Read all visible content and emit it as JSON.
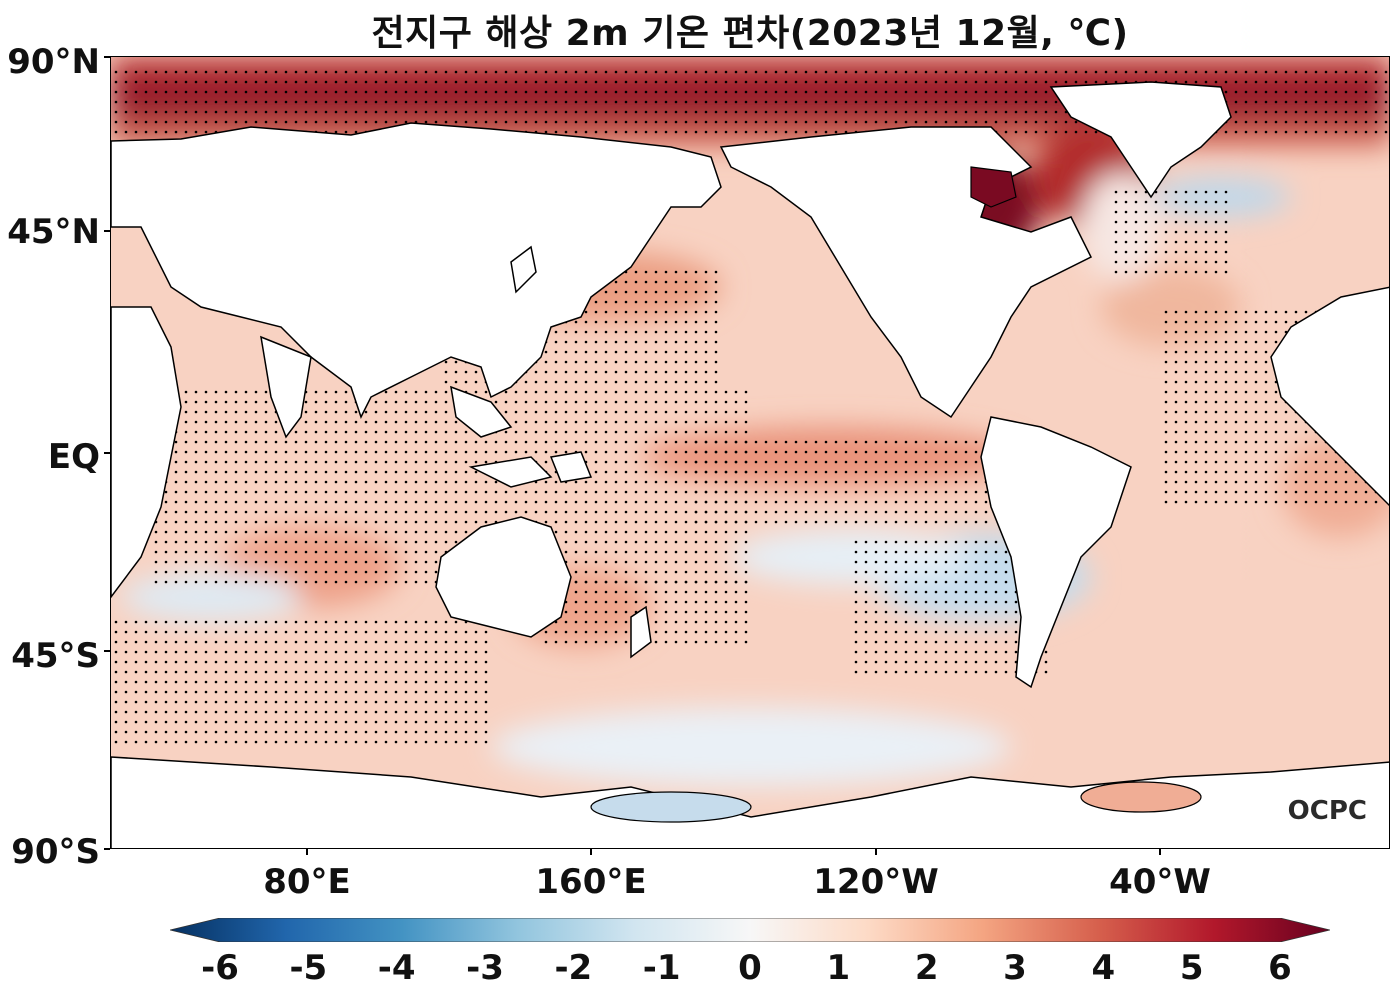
{
  "title": "전지구 해상 2m 기온 편차(2023년 12월, ℃)",
  "map": {
    "projection": "equirectangular, centered on Pacific",
    "lat_labels": [
      "90°N",
      "45°N",
      "EQ",
      "45°S",
      "90°S"
    ],
    "lon_labels": [
      "80°E",
      "160°E",
      "120°W",
      "40°W"
    ],
    "land_color": "#ffffff",
    "coastline_color": "#000000",
    "stippling": "significant anomaly dots"
  },
  "colorbar": {
    "colormap": "RdBu_r",
    "ticks": [
      "-6",
      "-5",
      "-4",
      "-3",
      "-2",
      "-1",
      "0",
      "1",
      "2",
      "3",
      "4",
      "5",
      "6"
    ],
    "range": [
      -6,
      6
    ],
    "extend": "both",
    "colors": [
      "#053061",
      "#2166ac",
      "#4393c3",
      "#92c5de",
      "#d1e5f0",
      "#f7f7f7",
      "#fddbc7",
      "#f4a582",
      "#d6604d",
      "#b2182b",
      "#67001f"
    ]
  },
  "logo": "OCPC"
}
